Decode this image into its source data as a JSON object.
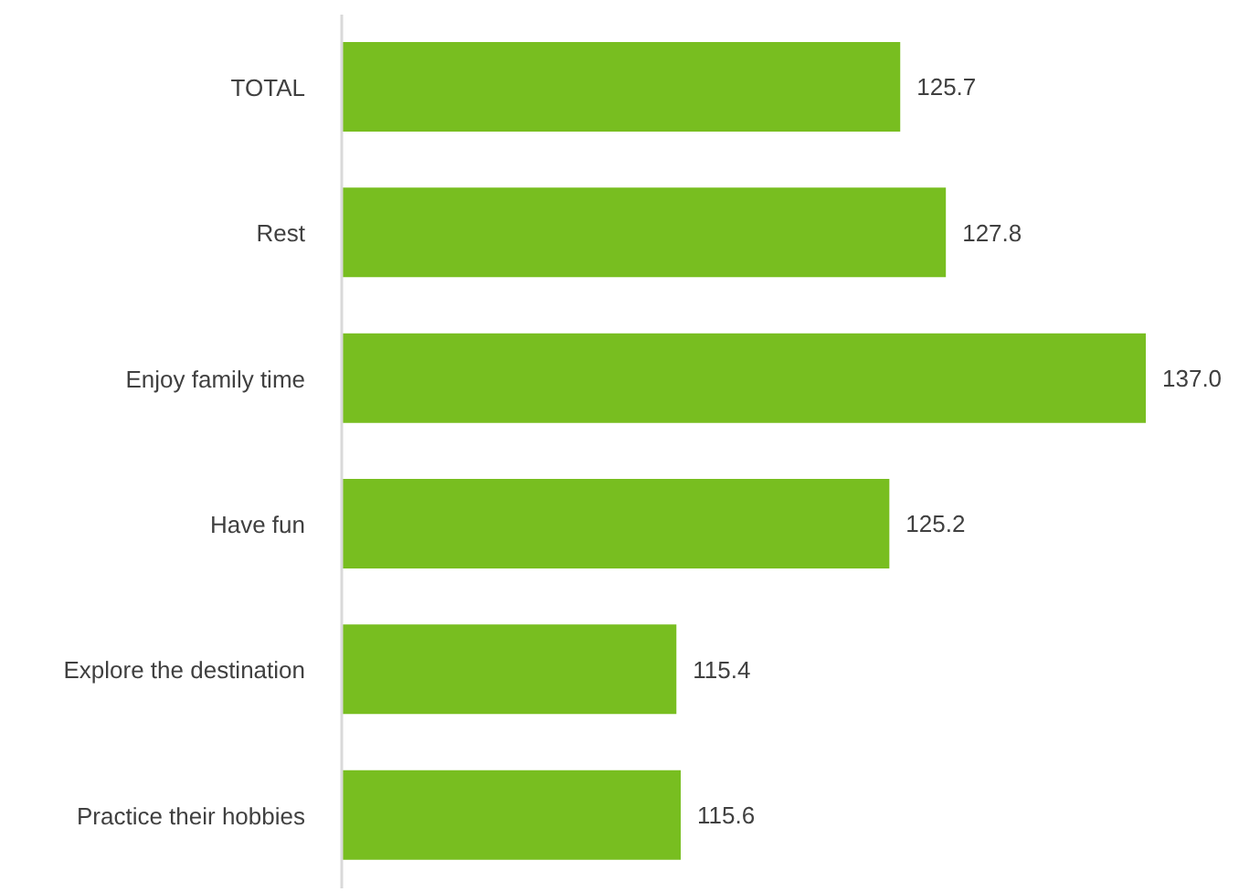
{
  "chart_data": {
    "type": "bar",
    "orientation": "horizontal",
    "categories": [
      "TOTAL",
      "Rest",
      "Enjoy family time",
      "Have fun",
      "Explore the destination",
      "Practice their hobbies"
    ],
    "values": [
      125.7,
      127.8,
      137.0,
      125.2,
      115.4,
      115.6
    ],
    "value_labels": [
      "125.7",
      "127.8",
      "137.0",
      "125.2",
      "115.4",
      "115.6"
    ],
    "color": "#78be20",
    "xlim": [
      100,
      137
    ],
    "tick_labels": "y",
    "grid": false,
    "legend": false
  }
}
